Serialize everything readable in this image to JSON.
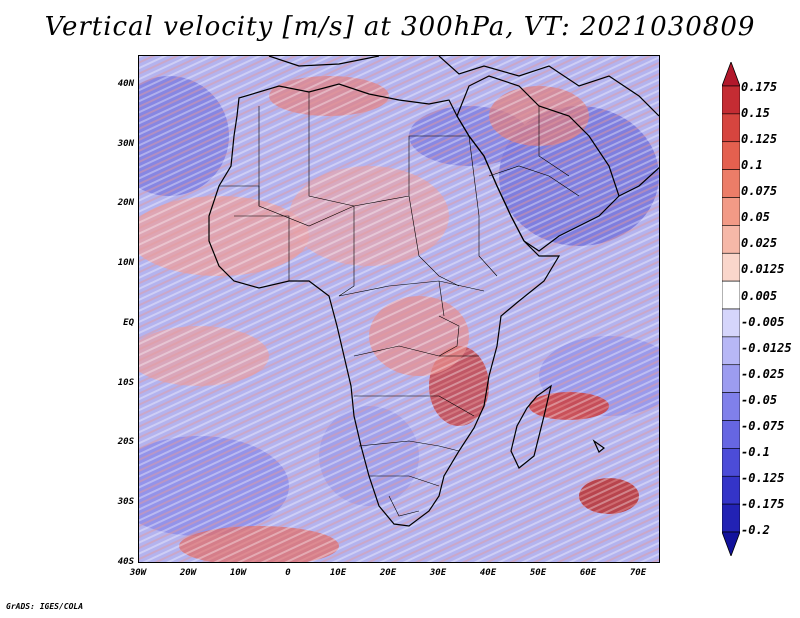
{
  "title": "Vertical velocity [m/s] at 300hPa, VT: 2021030809",
  "credit": "GrADS: IGES/COLA",
  "lat_ticks": [
    "40N",
    "30N",
    "20N",
    "10N",
    "EQ",
    "10S",
    "20S",
    "30S",
    "40S"
  ],
  "lon_ticks": [
    "30W",
    "20W",
    "10W",
    "0",
    "10E",
    "20E",
    "30E",
    "40E",
    "50E",
    "60E",
    "70E"
  ],
  "colorbar": {
    "labels": [
      "0.175",
      "0.15",
      "0.125",
      "0.1",
      "0.075",
      "0.05",
      "0.025",
      "0.0125",
      "0.005",
      "-0.005",
      "-0.0125",
      "-0.025",
      "-0.05",
      "-0.075",
      "-0.1",
      "-0.125",
      "-0.175",
      "-0.2"
    ],
    "colors": [
      "#b2182b",
      "#c42c33",
      "#d6453f",
      "#e4604f",
      "#ec7d68",
      "#f29a86",
      "#f6b8a8",
      "#fad6cb",
      "#ffffff",
      "#d5d5fb",
      "#b7b7f6",
      "#9c9cf0",
      "#8080ea",
      "#6666e2",
      "#4c4cd8",
      "#3434c8",
      "#2222b4",
      "#12129c"
    ]
  },
  "map": {
    "ocean_color": "#b9b9f0",
    "land_color": "#e6b4bf",
    "positive_color": "#e58585",
    "negative_color": "#7a7ae0"
  }
}
